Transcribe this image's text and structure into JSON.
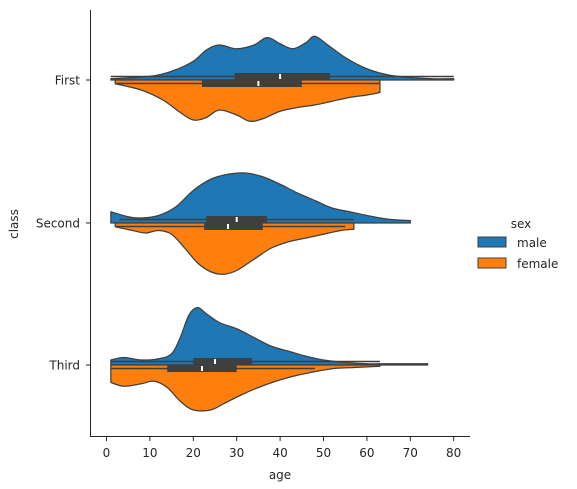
{
  "chart_data": {
    "type": "violin",
    "split": true,
    "orientation": "horizontal",
    "xlabel": "age",
    "ylabel": "class",
    "xlim": [
      -4,
      84
    ],
    "xticks": [
      0,
      10,
      20,
      30,
      40,
      50,
      60,
      70,
      80
    ],
    "categories": [
      "First",
      "Second",
      "Third"
    ],
    "legend": {
      "title": "sex",
      "position": "right",
      "entries": [
        "male",
        "female"
      ]
    },
    "series": [
      {
        "name": "male",
        "color": "#1f77b4",
        "side": "upper",
        "violins": [
          {
            "category": "First",
            "range": [
              1,
              80
            ],
            "quartiles": [
              29.5,
              40,
              51.5
            ],
            "median": 40,
            "whiskers": [
              1,
              80
            ],
            "profile": [
              [
                1,
                0.1
              ],
              [
                10,
                0.3
              ],
              [
                15,
                0.7
              ],
              [
                20,
                1.5
              ],
              [
                23,
                2.4
              ],
              [
                26,
                2.8
              ],
              [
                30,
                2.5
              ],
              [
                34,
                2.8
              ],
              [
                37,
                3.4
              ],
              [
                40,
                2.9
              ],
              [
                43,
                2.5
              ],
              [
                46,
                3.0
              ],
              [
                48,
                3.5
              ],
              [
                51,
                2.8
              ],
              [
                55,
                1.8
              ],
              [
                60,
                0.9
              ],
              [
                65,
                0.4
              ],
              [
                70,
                0.2
              ],
              [
                75,
                0.1
              ],
              [
                80,
                0.1
              ]
            ]
          },
          {
            "category": "Second",
            "range": [
              1,
              70
            ],
            "quartiles": [
              23,
              30,
              37
            ],
            "median": 30,
            "whiskers": [
              3,
              57
            ],
            "profile": [
              [
                1,
                0.9
              ],
              [
                5,
                0.5
              ],
              [
                8,
                0.4
              ],
              [
                12,
                0.6
              ],
              [
                16,
                1.3
              ],
              [
                20,
                2.6
              ],
              [
                24,
                3.5
              ],
              [
                28,
                3.9
              ],
              [
                32,
                4.0
              ],
              [
                36,
                3.7
              ],
              [
                40,
                3.1
              ],
              [
                44,
                2.4
              ],
              [
                48,
                1.8
              ],
              [
                52,
                1.2
              ],
              [
                56,
                0.9
              ],
              [
                60,
                0.6
              ],
              [
                65,
                0.3
              ],
              [
                70,
                0.2
              ]
            ]
          },
          {
            "category": "Third",
            "range": [
              1,
              74
            ],
            "quartiles": [
              20,
              25,
              33.5
            ],
            "median": 25,
            "whiskers": [
              1,
              63
            ],
            "profile": [
              [
                1,
                0.4
              ],
              [
                4,
                0.6
              ],
              [
                8,
                0.4
              ],
              [
                12,
                0.5
              ],
              [
                15,
                0.9
              ],
              [
                17,
                2.2
              ],
              [
                19,
                4.0
              ],
              [
                21,
                4.6
              ],
              [
                23,
                4.1
              ],
              [
                26,
                3.4
              ],
              [
                30,
                2.9
              ],
              [
                34,
                2.2
              ],
              [
                38,
                1.5
              ],
              [
                42,
                1.1
              ],
              [
                46,
                0.7
              ],
              [
                50,
                0.4
              ],
              [
                55,
                0.2
              ],
              [
                60,
                0.1
              ],
              [
                65,
                0.1
              ],
              [
                70,
                0.1
              ],
              [
                74,
                0.1
              ]
            ]
          }
        ]
      },
      {
        "name": "female",
        "color": "#ff7f0e",
        "side": "lower",
        "violins": [
          {
            "category": "First",
            "range": [
              2,
              63
            ],
            "quartiles": [
              22,
              35,
              45
            ],
            "median": 35,
            "whiskers": [
              2,
              63
            ],
            "profile": [
              [
                2,
                0.3
              ],
              [
                8,
                0.8
              ],
              [
                13,
                1.6
              ],
              [
                17,
                2.6
              ],
              [
                20,
                3.2
              ],
              [
                23,
                3.0
              ],
              [
                26,
                2.4
              ],
              [
                30,
                2.8
              ],
              [
                33,
                3.3
              ],
              [
                36,
                3.1
              ],
              [
                40,
                2.5
              ],
              [
                44,
                2.2
              ],
              [
                48,
                2.0
              ],
              [
                52,
                1.7
              ],
              [
                56,
                1.4
              ],
              [
                60,
                1.2
              ],
              [
                63,
                1.0
              ]
            ]
          },
          {
            "category": "Second",
            "range": [
              2,
              57
            ],
            "quartiles": [
              22.5,
              28,
              36
            ],
            "median": 28,
            "whiskers": [
              2,
              55
            ],
            "profile": [
              [
                2,
                0.3
              ],
              [
                6,
                0.6
              ],
              [
                9,
                0.8
              ],
              [
                12,
                0.6
              ],
              [
                15,
                0.9
              ],
              [
                18,
                2.0
              ],
              [
                21,
                3.2
              ],
              [
                24,
                3.9
              ],
              [
                27,
                4.1
              ],
              [
                30,
                3.8
              ],
              [
                34,
                2.9
              ],
              [
                38,
                2.0
              ],
              [
                42,
                1.5
              ],
              [
                46,
                1.2
              ],
              [
                50,
                0.9
              ],
              [
                54,
                0.6
              ],
              [
                57,
                0.5
              ]
            ]
          },
          {
            "category": "Third",
            "range": [
              1,
              63
            ],
            "quartiles": [
              14,
              22,
              30
            ],
            "median": 22,
            "whiskers": [
              1,
              48
            ],
            "profile": [
              [
                1,
                1.4
              ],
              [
                4,
                1.7
              ],
              [
                8,
                1.5
              ],
              [
                11,
                1.3
              ],
              [
                14,
                1.8
              ],
              [
                17,
                2.9
              ],
              [
                20,
                3.6
              ],
              [
                24,
                3.6
              ],
              [
                27,
                3.1
              ],
              [
                31,
                2.4
              ],
              [
                35,
                1.8
              ],
              [
                39,
                1.3
              ],
              [
                43,
                0.9
              ],
              [
                47,
                0.6
              ],
              [
                52,
                0.3
              ],
              [
                57,
                0.2
              ],
              [
                63,
                0.1
              ]
            ]
          }
        ]
      }
    ]
  }
}
